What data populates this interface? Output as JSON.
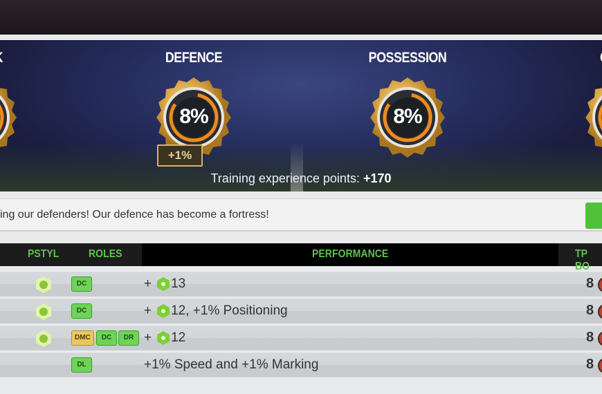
{
  "banner": {
    "stats": [
      {
        "title": "ATTACK",
        "value": "",
        "partial": true
      },
      {
        "title": "DEFENCE",
        "value": "8%",
        "delta": "+1%",
        "progress": 8
      },
      {
        "title": "POSSESSION",
        "value": "8%",
        "progress": 8
      },
      {
        "title": "CO",
        "value": "",
        "partial": true
      }
    ],
    "xp_label": "Training experience points:",
    "xp_value": "+170"
  },
  "message": "ing our defenders! Our defence has become a fortress!",
  "table": {
    "headers": {
      "pstyl": "PSTYL",
      "roles": "ROLES",
      "performance": "PERFORMANCE",
      "tp": "TP BO"
    },
    "rows": [
      {
        "pstyl": true,
        "roles": [
          {
            "label": "DC",
            "color": "green"
          }
        ],
        "plus": "+",
        "gem": true,
        "perf": "13",
        "tp": "8"
      },
      {
        "pstyl": true,
        "roles": [
          {
            "label": "DC",
            "color": "green"
          }
        ],
        "plus": "+",
        "gem": true,
        "perf": "12, +1% Positioning",
        "tp": "8"
      },
      {
        "pstyl": true,
        "roles": [
          {
            "label": "DMC",
            "color": "yellow"
          },
          {
            "label": "DC",
            "color": "green"
          },
          {
            "label": "DR",
            "color": "green"
          }
        ],
        "plus": "+",
        "gem": true,
        "perf": "12",
        "tp": "8"
      },
      {
        "pstyl": false,
        "roles": [
          {
            "label": "DL",
            "color": "green"
          }
        ],
        "plus": "",
        "gem": false,
        "perf": "+1% Speed and +1% Marking",
        "tp": "8"
      }
    ]
  },
  "colors": {
    "accent_green": "#5cc44a",
    "gold": "#d7b56a",
    "ring_orange": "#f08a1c",
    "ring_yellow": "#f5d21a"
  }
}
